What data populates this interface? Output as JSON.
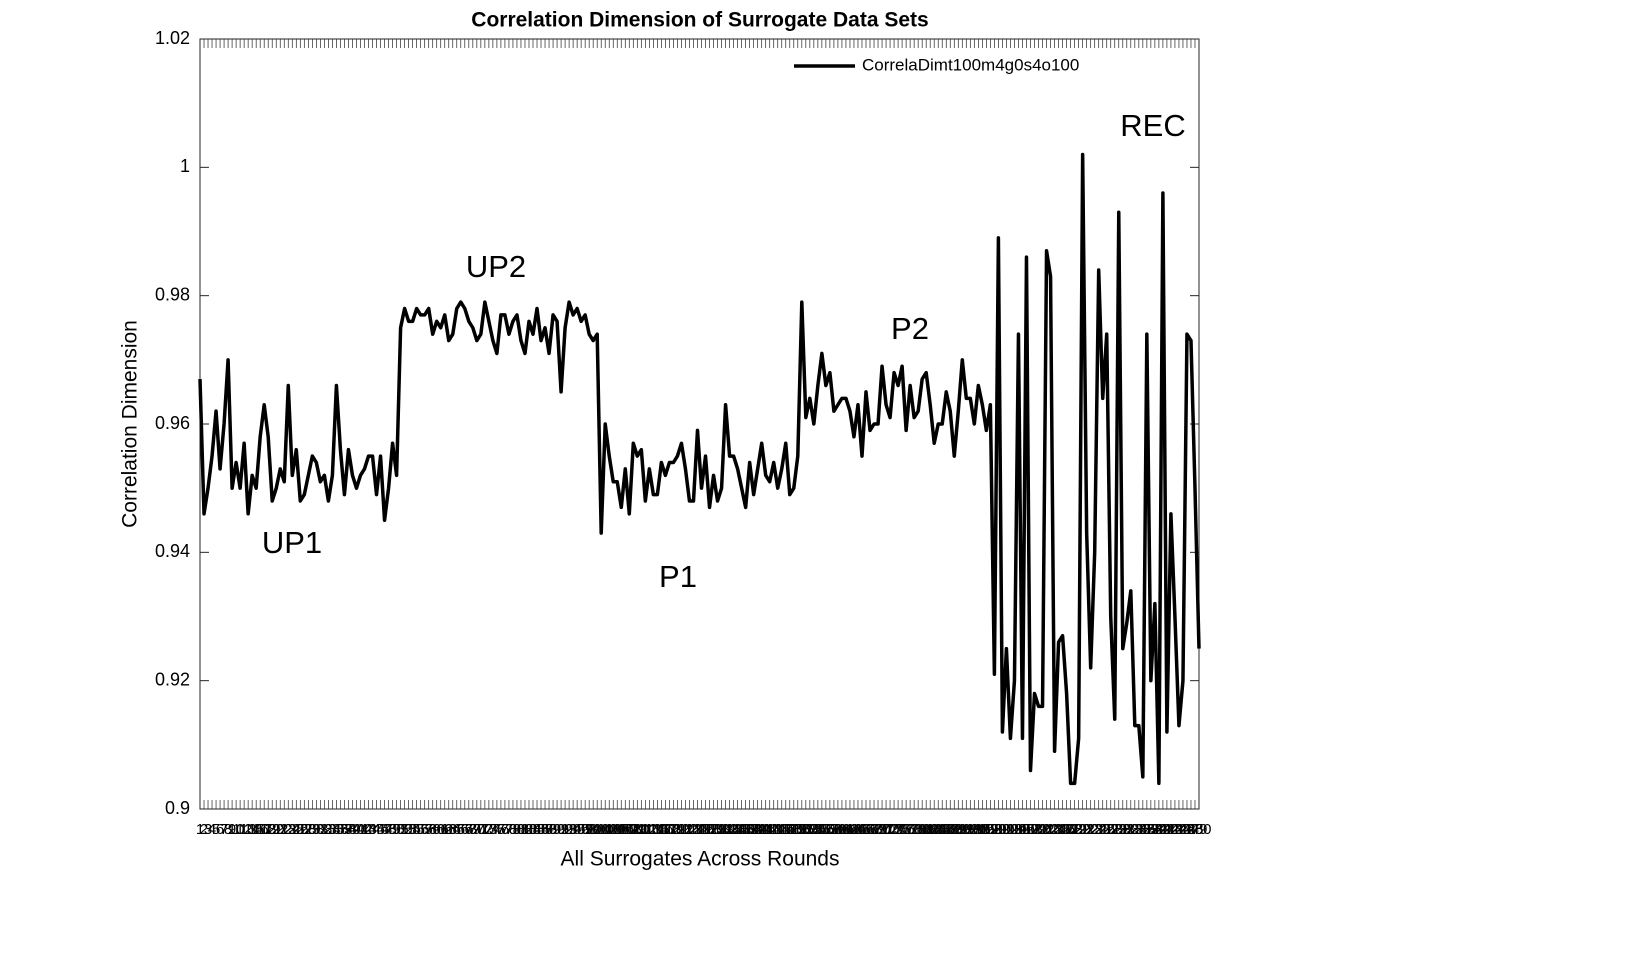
{
  "chart_data": {
    "type": "line",
    "title": "Correlation Dimension of Surrogate Data Sets",
    "xlabel": "All Surrogates Across Rounds",
    "ylabel": "Correlation Dimension",
    "annotations": [
      "UP1",
      "UP2",
      "P1",
      "P2",
      "REC"
    ],
    "x": [
      1,
      2,
      3,
      4,
      5,
      6,
      7,
      8,
      9,
      10,
      11,
      12,
      13,
      14,
      15,
      16,
      17,
      18,
      19,
      20,
      21,
      22,
      23,
      24,
      25,
      26,
      27,
      28,
      29,
      30,
      31,
      32,
      33,
      34,
      35,
      36,
      37,
      38,
      39,
      40,
      41,
      42,
      43,
      44,
      45,
      46,
      47,
      48,
      49,
      50,
      51,
      52,
      53,
      54,
      55,
      56,
      57,
      58,
      59,
      60,
      61,
      62,
      63,
      64,
      65,
      66,
      67,
      68,
      69,
      70,
      71,
      72,
      73,
      74,
      75,
      76,
      77,
      78,
      79,
      80,
      81,
      82,
      83,
      84,
      85,
      86,
      87,
      88,
      89,
      90,
      91,
      92,
      93,
      94,
      95,
      96,
      97,
      98,
      99,
      100,
      101,
      102,
      103,
      104,
      105,
      106,
      107,
      108,
      109,
      110,
      111,
      112,
      113,
      114,
      115,
      116,
      117,
      118,
      119,
      120,
      121,
      122,
      123,
      124,
      125,
      126,
      127,
      128,
      129,
      130,
      131,
      132,
      133,
      134,
      135,
      136,
      137,
      138,
      139,
      140,
      141,
      142,
      143,
      144,
      145,
      146,
      147,
      148,
      149,
      150,
      151,
      152,
      153,
      154,
      155,
      156,
      157,
      158,
      159,
      160,
      161,
      162,
      163,
      164,
      165,
      166,
      167,
      168,
      169,
      170,
      171,
      172,
      173,
      174,
      175,
      176,
      177,
      178,
      179,
      180,
      181,
      182,
      183,
      184,
      185,
      186,
      187,
      188,
      189,
      190,
      191,
      192,
      193,
      194,
      195,
      196,
      197,
      198,
      199,
      200,
      201,
      202,
      203,
      204,
      205,
      206,
      207,
      208,
      209,
      210,
      211,
      212,
      213,
      214,
      215,
      216,
      217,
      218,
      219,
      220,
      221,
      222,
      223,
      224,
      225,
      226,
      227,
      228,
      229,
      230,
      231,
      232,
      233,
      234,
      235,
      236,
      237,
      238,
      239,
      240,
      241,
      242,
      243,
      244,
      245,
      246,
      247,
      248,
      249,
      250
    ],
    "series": [
      {
        "name": "CorrelaDimt100m4g0s4o100",
        "color": "#000000",
        "values": [
          0.967,
          0.946,
          0.95,
          0.955,
          0.962,
          0.953,
          0.96,
          0.97,
          0.95,
          0.954,
          0.95,
          0.957,
          0.946,
          0.952,
          0.95,
          0.958,
          0.963,
          0.958,
          0.948,
          0.95,
          0.953,
          0.951,
          0.966,
          0.952,
          0.956,
          0.948,
          0.949,
          0.952,
          0.955,
          0.954,
          0.951,
          0.952,
          0.948,
          0.952,
          0.966,
          0.956,
          0.949,
          0.956,
          0.952,
          0.95,
          0.952,
          0.953,
          0.955,
          0.955,
          0.949,
          0.955,
          0.945,
          0.95,
          0.957,
          0.952,
          0.975,
          0.978,
          0.976,
          0.976,
          0.978,
          0.977,
          0.977,
          0.978,
          0.974,
          0.976,
          0.975,
          0.977,
          0.973,
          0.974,
          0.978,
          0.979,
          0.978,
          0.976,
          0.975,
          0.973,
          0.974,
          0.979,
          0.976,
          0.973,
          0.971,
          0.977,
          0.977,
          0.974,
          0.976,
          0.977,
          0.973,
          0.971,
          0.976,
          0.974,
          0.978,
          0.973,
          0.975,
          0.971,
          0.977,
          0.976,
          0.965,
          0.975,
          0.979,
          0.977,
          0.978,
          0.976,
          0.977,
          0.974,
          0.973,
          0.974,
          0.943,
          0.96,
          0.955,
          0.951,
          0.951,
          0.947,
          0.953,
          0.946,
          0.957,
          0.955,
          0.956,
          0.948,
          0.953,
          0.949,
          0.949,
          0.954,
          0.952,
          0.954,
          0.954,
          0.955,
          0.957,
          0.953,
          0.948,
          0.948,
          0.959,
          0.95,
          0.955,
          0.947,
          0.952,
          0.948,
          0.95,
          0.963,
          0.955,
          0.955,
          0.953,
          0.95,
          0.947,
          0.954,
          0.949,
          0.953,
          0.957,
          0.952,
          0.951,
          0.954,
          0.95,
          0.953,
          0.957,
          0.949,
          0.95,
          0.955,
          0.979,
          0.961,
          0.964,
          0.96,
          0.966,
          0.971,
          0.966,
          0.968,
          0.962,
          0.963,
          0.964,
          0.964,
          0.962,
          0.958,
          0.963,
          0.955,
          0.965,
          0.959,
          0.96,
          0.96,
          0.969,
          0.963,
          0.961,
          0.968,
          0.966,
          0.969,
          0.959,
          0.966,
          0.961,
          0.962,
          0.967,
          0.968,
          0.963,
          0.957,
          0.96,
          0.96,
          0.965,
          0.962,
          0.955,
          0.962,
          0.97,
          0.964,
          0.964,
          0.96,
          0.966,
          0.963,
          0.959,
          0.963,
          0.921,
          0.989,
          0.912,
          0.925,
          0.911,
          0.92,
          0.974,
          0.911,
          0.986,
          0.906,
          0.918,
          0.916,
          0.916,
          0.987,
          0.983,
          0.909,
          0.926,
          0.927,
          0.918,
          0.904,
          0.904,
          0.911,
          1.002,
          0.943,
          0.922,
          0.94,
          0.984,
          0.964,
          0.974,
          0.93,
          0.914,
          0.993,
          0.925,
          0.929,
          0.934,
          0.913,
          0.913,
          0.905,
          0.974,
          0.92,
          0.932,
          0.904,
          0.996,
          0.912,
          0.946,
          0.93,
          0.913,
          0.92,
          0.974,
          0.973,
          0.95,
          0.925
        ]
      }
    ],
    "xlim": [
      1,
      250
    ],
    "xticks": [
      1,
      2,
      3,
      4,
      5,
      6,
      7,
      8,
      9,
      10,
      11,
      12,
      13,
      14,
      15,
      16,
      17,
      18,
      19,
      20,
      21,
      22,
      23,
      24,
      25,
      26,
      27,
      28,
      29,
      30,
      31,
      32,
      33,
      34,
      35,
      36,
      37,
      38,
      39,
      40,
      41,
      42,
      43,
      44,
      45,
      46,
      47,
      48,
      49,
      50,
      51,
      52,
      53,
      54,
      55,
      56,
      57,
      58,
      59,
      60,
      61,
      62,
      63,
      64,
      65,
      66,
      67,
      68,
      69,
      70,
      71,
      72,
      73,
      74,
      75,
      76,
      77,
      78,
      79,
      80,
      81,
      82,
      83,
      84,
      85,
      86,
      87,
      88,
      89,
      90,
      91,
      92,
      93,
      94,
      95,
      96,
      97,
      98,
      99,
      100,
      101,
      102,
      103,
      104,
      105,
      106,
      107,
      108,
      109,
      110,
      111,
      112,
      113,
      114,
      115,
      116,
      117,
      118,
      119,
      120,
      121,
      122,
      123,
      124,
      125,
      126,
      127,
      128,
      129,
      130,
      131,
      132,
      133,
      134,
      135,
      136,
      137,
      138,
      139,
      140,
      141,
      142,
      143,
      144,
      145,
      146,
      147,
      148,
      149,
      150,
      151,
      152,
      153,
      154,
      155,
      156,
      157,
      158,
      159,
      160,
      161,
      162,
      163,
      164,
      165,
      166,
      167,
      168,
      169,
      170,
      171,
      172,
      173,
      174,
      175,
      176,
      177,
      178,
      179,
      180,
      181,
      182,
      183,
      184,
      185,
      186,
      187,
      188,
      189,
      190,
      191,
      192,
      193,
      194,
      195,
      196,
      197,
      198,
      199,
      200,
      201,
      202,
      203,
      204,
      205,
      206,
      207,
      208,
      209,
      210,
      211,
      212,
      213,
      214,
      215,
      216,
      217,
      218,
      219,
      220,
      221,
      222,
      223,
      224,
      225,
      226,
      227,
      228,
      229,
      230,
      231,
      232,
      233,
      234,
      235,
      236,
      237,
      238,
      239,
      240,
      241,
      242,
      243,
      244,
      245,
      246,
      247,
      248,
      249,
      250
    ],
    "ylim": [
      0.9,
      1.02
    ],
    "yticks": [
      0.9,
      0.92,
      0.94,
      0.96,
      0.98,
      1,
      {
        "value": 1.02,
        "label": "1.02"
      }
    ],
    "grid": false,
    "legend": "top-right"
  }
}
